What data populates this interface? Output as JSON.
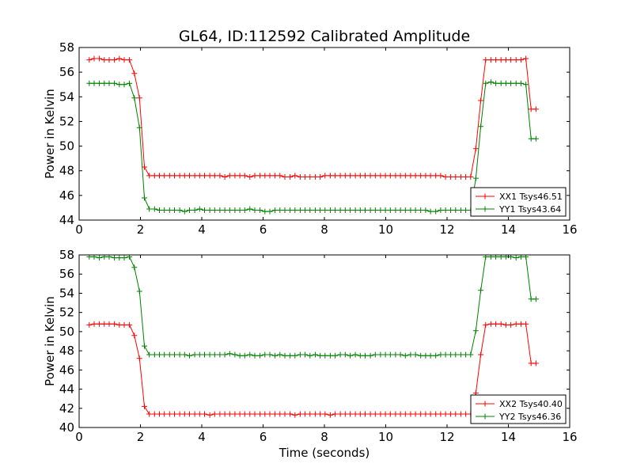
{
  "title": "GL64, ID:112592 Calibrated Amplitude",
  "chart_data": [
    {
      "type": "line",
      "xlabel": "",
      "ylabel": "Power in Kelvin",
      "xlim": [
        0,
        16
      ],
      "ylim": [
        44,
        58
      ],
      "xticks": [
        0,
        2,
        4,
        6,
        8,
        10,
        12,
        14,
        16
      ],
      "yticks": [
        44,
        46,
        48,
        50,
        52,
        54,
        56,
        58
      ],
      "legend_position": "lower-right",
      "x": [
        0.33,
        0.49,
        0.66,
        0.82,
        0.98,
        1.15,
        1.31,
        1.47,
        1.64,
        1.8,
        1.97,
        2.13,
        2.29,
        2.46,
        2.62,
        2.78,
        2.95,
        3.11,
        3.28,
        3.44,
        3.6,
        3.77,
        3.93,
        4.09,
        4.26,
        4.42,
        4.59,
        4.75,
        4.91,
        5.08,
        5.24,
        5.4,
        5.57,
        5.73,
        5.9,
        6.06,
        6.22,
        6.39,
        6.55,
        6.71,
        6.88,
        7.04,
        7.21,
        7.37,
        7.53,
        7.7,
        7.86,
        8.02,
        8.19,
        8.35,
        8.52,
        8.68,
        8.84,
        9.01,
        9.17,
        9.33,
        9.5,
        9.66,
        9.83,
        9.99,
        10.15,
        10.32,
        10.48,
        10.64,
        10.81,
        10.97,
        11.14,
        11.3,
        11.46,
        11.63,
        11.79,
        11.95,
        12.12,
        12.28,
        12.45,
        12.61,
        12.77,
        12.94,
        13.1,
        13.26,
        13.43,
        13.59,
        13.76,
        13.92,
        14.08,
        14.25,
        14.41,
        14.57,
        14.74,
        14.9
      ],
      "series": [
        {
          "name": "XX1 Tsys46.51",
          "color": "#ff0000",
          "values": [
            57.0,
            57.1,
            57.1,
            57.0,
            57.0,
            57.0,
            57.1,
            57.0,
            57.0,
            55.9,
            53.9,
            48.3,
            47.6,
            47.6,
            47.6,
            47.6,
            47.6,
            47.6,
            47.6,
            47.6,
            47.6,
            47.6,
            47.6,
            47.6,
            47.6,
            47.6,
            47.6,
            47.5,
            47.6,
            47.6,
            47.6,
            47.6,
            47.5,
            47.6,
            47.6,
            47.6,
            47.6,
            47.6,
            47.6,
            47.5,
            47.5,
            47.6,
            47.5,
            47.5,
            47.5,
            47.5,
            47.5,
            47.6,
            47.6,
            47.6,
            47.6,
            47.6,
            47.6,
            47.6,
            47.6,
            47.6,
            47.6,
            47.6,
            47.6,
            47.6,
            47.6,
            47.6,
            47.6,
            47.6,
            47.6,
            47.6,
            47.6,
            47.6,
            47.6,
            47.6,
            47.6,
            47.5,
            47.5,
            47.5,
            47.5,
            47.5,
            47.5,
            49.8,
            53.7,
            57.0,
            57.0,
            57.0,
            57.0,
            57.0,
            57.0,
            57.0,
            57.0,
            57.1,
            53.0,
            53.0
          ]
        },
        {
          "name": "YY1 Tsys43.64",
          "color": "#008000",
          "values": [
            55.1,
            55.1,
            55.1,
            55.1,
            55.1,
            55.1,
            55.0,
            55.0,
            55.1,
            53.9,
            51.5,
            45.8,
            44.9,
            44.9,
            44.8,
            44.8,
            44.8,
            44.8,
            44.8,
            44.7,
            44.8,
            44.8,
            44.9,
            44.8,
            44.8,
            44.8,
            44.8,
            44.8,
            44.8,
            44.8,
            44.8,
            44.8,
            44.9,
            44.8,
            44.8,
            44.7,
            44.7,
            44.8,
            44.8,
            44.8,
            44.8,
            44.8,
            44.8,
            44.8,
            44.8,
            44.8,
            44.8,
            44.8,
            44.8,
            44.8,
            44.8,
            44.8,
            44.8,
            44.8,
            44.8,
            44.8,
            44.8,
            44.8,
            44.8,
            44.8,
            44.8,
            44.8,
            44.8,
            44.8,
            44.8,
            44.8,
            44.8,
            44.8,
            44.7,
            44.7,
            44.8,
            44.8,
            44.8,
            44.8,
            44.8,
            44.8,
            44.8,
            47.4,
            51.6,
            55.1,
            55.2,
            55.1,
            55.1,
            55.1,
            55.1,
            55.1,
            55.1,
            55.0,
            50.6,
            50.6
          ]
        }
      ]
    },
    {
      "type": "line",
      "xlabel": "Time (seconds)",
      "ylabel": "Power in Kelvin",
      "xlim": [
        0,
        16
      ],
      "ylim": [
        40,
        58
      ],
      "xticks": [
        0,
        2,
        4,
        6,
        8,
        10,
        12,
        14,
        16
      ],
      "yticks": [
        40,
        42,
        44,
        46,
        48,
        50,
        52,
        54,
        56,
        58
      ],
      "legend_position": "lower-right",
      "x": [
        0.33,
        0.49,
        0.66,
        0.82,
        0.98,
        1.15,
        1.31,
        1.47,
        1.64,
        1.8,
        1.97,
        2.13,
        2.29,
        2.46,
        2.62,
        2.78,
        2.95,
        3.11,
        3.28,
        3.44,
        3.6,
        3.77,
        3.93,
        4.09,
        4.26,
        4.42,
        4.59,
        4.75,
        4.91,
        5.08,
        5.24,
        5.4,
        5.57,
        5.73,
        5.9,
        6.06,
        6.22,
        6.39,
        6.55,
        6.71,
        6.88,
        7.04,
        7.21,
        7.37,
        7.53,
        7.7,
        7.86,
        8.02,
        8.19,
        8.35,
        8.52,
        8.68,
        8.84,
        9.01,
        9.17,
        9.33,
        9.5,
        9.66,
        9.83,
        9.99,
        10.15,
        10.32,
        10.48,
        10.64,
        10.81,
        10.97,
        11.14,
        11.3,
        11.46,
        11.63,
        11.79,
        11.95,
        12.12,
        12.28,
        12.45,
        12.61,
        12.77,
        12.94,
        13.1,
        13.26,
        13.43,
        13.59,
        13.76,
        13.92,
        14.08,
        14.25,
        14.41,
        14.57,
        14.74,
        14.9
      ],
      "series": [
        {
          "name": "XX2 Tsys40.40",
          "color": "#ff0000",
          "values": [
            50.7,
            50.8,
            50.8,
            50.8,
            50.8,
            50.8,
            50.7,
            50.7,
            50.7,
            49.6,
            47.2,
            42.2,
            41.4,
            41.4,
            41.4,
            41.4,
            41.4,
            41.4,
            41.4,
            41.4,
            41.4,
            41.4,
            41.4,
            41.4,
            41.3,
            41.4,
            41.4,
            41.4,
            41.4,
            41.4,
            41.4,
            41.4,
            41.4,
            41.4,
            41.4,
            41.4,
            41.4,
            41.4,
            41.4,
            41.4,
            41.4,
            41.3,
            41.4,
            41.4,
            41.4,
            41.4,
            41.4,
            41.4,
            41.3,
            41.4,
            41.4,
            41.4,
            41.4,
            41.4,
            41.4,
            41.4,
            41.4,
            41.4,
            41.4,
            41.4,
            41.4,
            41.4,
            41.4,
            41.4,
            41.4,
            41.4,
            41.4,
            41.4,
            41.4,
            41.4,
            41.4,
            41.4,
            41.4,
            41.4,
            41.4,
            41.4,
            41.4,
            43.6,
            47.6,
            50.7,
            50.8,
            50.8,
            50.8,
            50.7,
            50.7,
            50.8,
            50.8,
            50.8,
            46.7,
            46.7
          ]
        },
        {
          "name": "YY2 Tsys46.36",
          "color": "#008000",
          "values": [
            57.8,
            57.8,
            57.7,
            57.8,
            57.8,
            57.7,
            57.7,
            57.7,
            57.8,
            56.7,
            54.2,
            48.5,
            47.6,
            47.6,
            47.6,
            47.6,
            47.6,
            47.6,
            47.6,
            47.6,
            47.5,
            47.6,
            47.6,
            47.6,
            47.6,
            47.6,
            47.6,
            47.6,
            47.7,
            47.6,
            47.5,
            47.5,
            47.6,
            47.5,
            47.5,
            47.6,
            47.6,
            47.5,
            47.6,
            47.5,
            47.5,
            47.5,
            47.6,
            47.6,
            47.5,
            47.6,
            47.5,
            47.5,
            47.5,
            47.5,
            47.6,
            47.6,
            47.5,
            47.6,
            47.5,
            47.5,
            47.5,
            47.6,
            47.6,
            47.6,
            47.6,
            47.6,
            47.6,
            47.5,
            47.6,
            47.6,
            47.5,
            47.5,
            47.5,
            47.5,
            47.6,
            47.6,
            47.6,
            47.6,
            47.6,
            47.6,
            47.6,
            50.1,
            54.3,
            57.8,
            57.8,
            57.8,
            57.8,
            57.8,
            57.8,
            57.7,
            57.8,
            57.8,
            53.4,
            53.4
          ]
        }
      ]
    }
  ]
}
